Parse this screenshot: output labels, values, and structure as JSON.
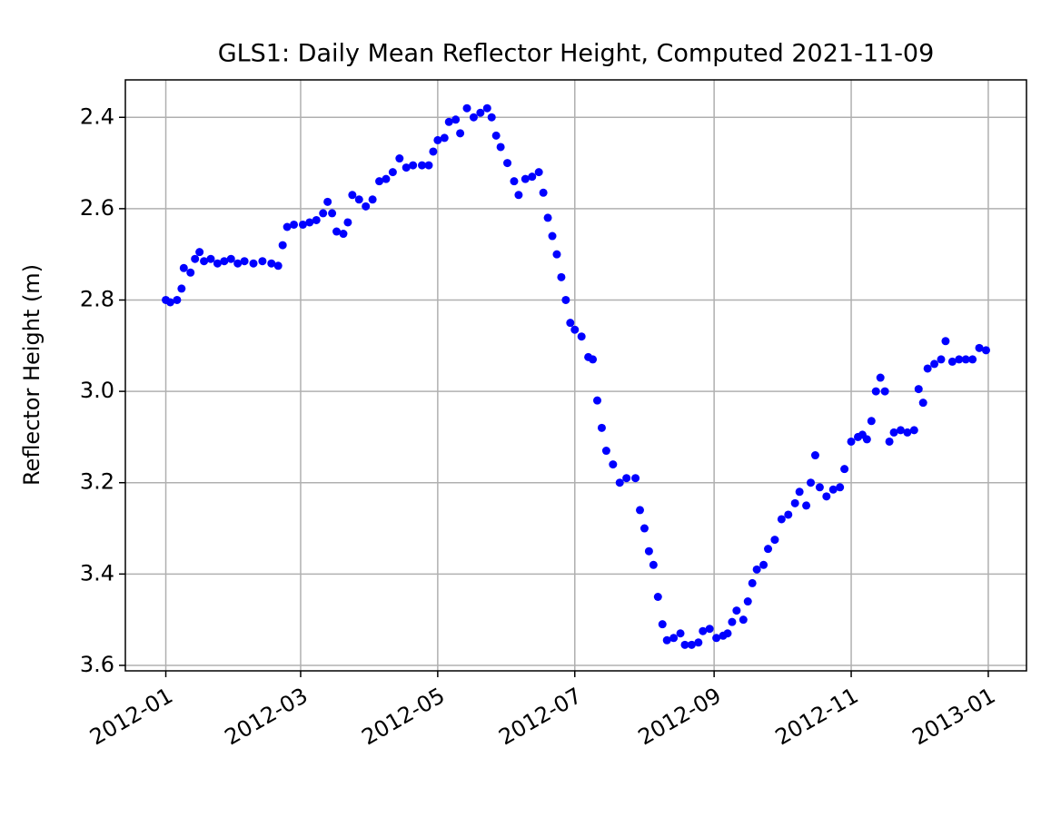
{
  "chart_data": {
    "type": "scatter",
    "title": "GLS1: Daily Mean Reflector Height, Computed 2021-11-09",
    "y_label": "Reflector Height (m)",
    "x": [
      "2012-01-01",
      "2012-01-03",
      "2012-01-06",
      "2012-01-08",
      "2012-01-09",
      "2012-01-12",
      "2012-01-14",
      "2012-01-16",
      "2012-01-18",
      "2012-01-21",
      "2012-01-24",
      "2012-01-27",
      "2012-01-30",
      "2012-02-02",
      "2012-02-05",
      "2012-02-09",
      "2012-02-13",
      "2012-02-17",
      "2012-02-20",
      "2012-02-22",
      "2012-02-24",
      "2012-02-27",
      "2012-03-02",
      "2012-03-05",
      "2012-03-08",
      "2012-03-11",
      "2012-03-13",
      "2012-03-15",
      "2012-03-17",
      "2012-03-20",
      "2012-03-22",
      "2012-03-24",
      "2012-03-27",
      "2012-03-30",
      "2012-04-02",
      "2012-04-05",
      "2012-04-08",
      "2012-04-11",
      "2012-04-14",
      "2012-04-17",
      "2012-04-20",
      "2012-04-24",
      "2012-04-27",
      "2012-04-29",
      "2012-05-01",
      "2012-05-04",
      "2012-05-06",
      "2012-05-09",
      "2012-05-11",
      "2012-05-14",
      "2012-05-17",
      "2012-05-20",
      "2012-05-23",
      "2012-05-25",
      "2012-05-27",
      "2012-05-29",
      "2012-06-01",
      "2012-06-04",
      "2012-06-06",
      "2012-06-09",
      "2012-06-12",
      "2012-06-15",
      "2012-06-17",
      "2012-06-19",
      "2012-06-21",
      "2012-06-23",
      "2012-06-25",
      "2012-06-27",
      "2012-06-29",
      "2012-07-01",
      "2012-07-04",
      "2012-07-07",
      "2012-07-09",
      "2012-07-11",
      "2012-07-13",
      "2012-07-15",
      "2012-07-18",
      "2012-07-21",
      "2012-07-24",
      "2012-07-28",
      "2012-07-30",
      "2012-08-01",
      "2012-08-03",
      "2012-08-05",
      "2012-08-07",
      "2012-08-09",
      "2012-08-11",
      "2012-08-14",
      "2012-08-17",
      "2012-08-19",
      "2012-08-22",
      "2012-08-25",
      "2012-08-27",
      "2012-08-30",
      "2012-09-02",
      "2012-09-05",
      "2012-09-07",
      "2012-09-09",
      "2012-09-11",
      "2012-09-14",
      "2012-09-16",
      "2012-09-18",
      "2012-09-20",
      "2012-09-23",
      "2012-09-25",
      "2012-09-28",
      "2012-10-01",
      "2012-10-04",
      "2012-10-07",
      "2012-10-09",
      "2012-10-12",
      "2012-10-14",
      "2012-10-16",
      "2012-10-18",
      "2012-10-21",
      "2012-10-24",
      "2012-10-27",
      "2012-10-29",
      "2012-11-01",
      "2012-11-04",
      "2012-11-06",
      "2012-11-08",
      "2012-11-10",
      "2012-11-12",
      "2012-11-14",
      "2012-11-16",
      "2012-11-18",
      "2012-11-20",
      "2012-11-23",
      "2012-11-26",
      "2012-11-29",
      "2012-12-01",
      "2012-12-03",
      "2012-12-05",
      "2012-12-08",
      "2012-12-11",
      "2012-12-13",
      "2012-12-16",
      "2012-12-19",
      "2012-12-22",
      "2012-12-25",
      "2012-12-28",
      "2012-12-31"
    ],
    "series": [
      {
        "color": "#0000ff",
        "values": [
          2.8,
          2.805,
          2.8,
          2.775,
          2.73,
          2.74,
          2.71,
          2.695,
          2.715,
          2.71,
          2.72,
          2.715,
          2.71,
          2.72,
          2.715,
          2.72,
          2.715,
          2.72,
          2.725,
          2.68,
          2.64,
          2.635,
          2.635,
          2.63,
          2.625,
          2.61,
          2.585,
          2.61,
          2.65,
          2.655,
          2.63,
          2.57,
          2.58,
          2.595,
          2.58,
          2.54,
          2.535,
          2.52,
          2.49,
          2.51,
          2.505,
          2.505,
          2.505,
          2.475,
          2.45,
          2.445,
          2.41,
          2.405,
          2.435,
          2.38,
          2.4,
          2.39,
          2.38,
          2.4,
          2.44,
          2.465,
          2.5,
          2.54,
          2.57,
          2.535,
          2.53,
          2.52,
          2.565,
          2.62,
          2.66,
          2.7,
          2.75,
          2.8,
          2.85,
          2.865,
          2.88,
          2.925,
          2.93,
          3.02,
          3.08,
          3.13,
          3.16,
          3.2,
          3.19,
          3.19,
          3.26,
          3.3,
          3.35,
          3.38,
          3.45,
          3.51,
          3.545,
          3.54,
          3.53,
          3.555,
          3.555,
          3.55,
          3.525,
          3.52,
          3.54,
          3.535,
          3.53,
          3.505,
          3.48,
          3.5,
          3.46,
          3.42,
          3.39,
          3.38,
          3.345,
          3.325,
          3.28,
          3.27,
          3.245,
          3.22,
          3.25,
          3.2,
          3.14,
          3.21,
          3.23,
          3.215,
          3.21,
          3.17,
          3.11,
          3.1,
          3.095,
          3.105,
          3.065,
          3.0,
          2.97,
          3.0,
          3.11,
          3.09,
          3.085,
          3.09,
          3.085,
          2.995,
          3.025,
          2.95,
          2.94,
          2.93,
          2.89,
          2.935,
          2.93,
          2.93,
          2.93,
          2.905,
          2.91
        ]
      }
    ],
    "xlim": [
      "2011-12-14",
      "2013-01-18"
    ],
    "xticks": [
      "2012-01",
      "2012-03",
      "2012-05",
      "2012-07",
      "2012-09",
      "2012-11",
      "2013-01"
    ],
    "ylim": [
      3.612,
      2.318
    ],
    "yticks": [
      {
        "value": 2.4,
        "label": "2.4"
      },
      {
        "value": 2.6,
        "label": "2.6"
      },
      {
        "value": 2.8,
        "label": "2.8"
      },
      {
        "value": 3.0,
        "label": "3.0"
      },
      {
        "value": 3.2,
        "label": "3.2"
      },
      {
        "value": 3.4,
        "label": "3.4"
      },
      {
        "value": 3.6,
        "label": "3.6"
      }
    ],
    "grid": true
  }
}
